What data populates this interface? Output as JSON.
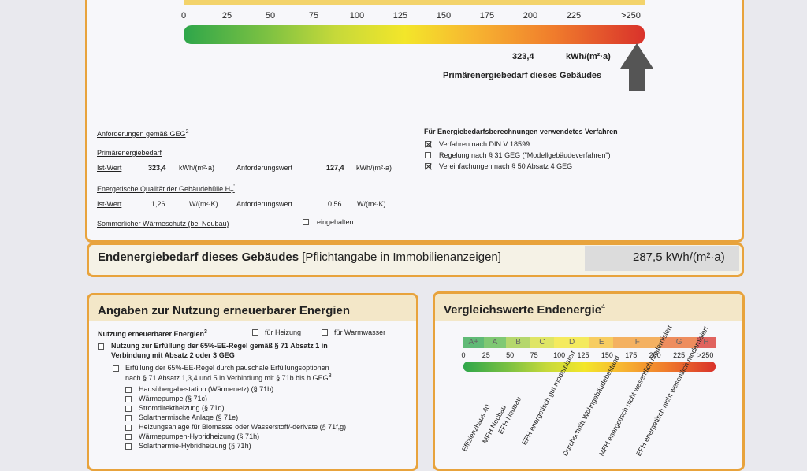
{
  "top_scale": {
    "ticks": [
      "0",
      "25",
      "50",
      "75",
      "100",
      "125",
      "150",
      "175",
      "200",
      "225",
      ">250"
    ],
    "value": "323,4",
    "unit": "kWh/(m²·a)",
    "arrow_label": "Primärenergiebedarf dieses Gebäudes"
  },
  "requirements": {
    "heading": "Anforderungen gemäß GEG",
    "heading_sup": "2",
    "primary_title": "Primärenergiebedarf",
    "ist_label": "Ist-Wert",
    "ist_value": "323,4",
    "ist_unit": "kWh/(m²·a)",
    "anf_label": "Anforderungswert",
    "anf_value": "127,4",
    "anf_unit": "kWh/(m²·a)",
    "envelope_title": "Energetische Qualität der Gebäudehülle H",
    "envelope_sub": "T",
    "envelope_sup": "'",
    "ist2_label": "Ist-Wert",
    "ist2_value": "1,26",
    "ist2_unit": "W/(m²·K)",
    "anf2_label": "Anforderungswert",
    "anf2_value": "0,56",
    "anf2_unit": "W/(m²·K)",
    "summer_label": "Sommerlicher Wärmeschutz (bei Neubau)",
    "summer_check_label": "eingehalten"
  },
  "procedure": {
    "heading": "Für Energiebedarfsberechnungen verwendetes Verfahren",
    "items": [
      {
        "label": "Verfahren nach DIN V 18599",
        "checked": true
      },
      {
        "label": "Regelung nach § 31 GEG (\"Modellgebäudeverfahren\")",
        "checked": false
      },
      {
        "label": "Vereinfachungen nach § 50 Absatz 4 GEG",
        "checked": true
      }
    ]
  },
  "final_energy": {
    "label": "Endenergiebedarf dieses Gebäudes",
    "note": "[Pflichtangabe in Immobilienanzeigen]",
    "value": "287,5 kWh/(m²·a)"
  },
  "renewables": {
    "title": "Angaben zur Nutzung erneuerbarer Energien",
    "use_label": "Nutzung erneuerbarer Energien",
    "use_sup": "3",
    "heating": "für Heizung",
    "hot_water": "für Warmwasser",
    "rule_line1": "Nutzung zur Erfüllung der 65%-EE-Regel gemäß § 71 Absatz 1 in",
    "rule_line2": "Verbindung mit Absatz 2 oder 3 GEG",
    "flat_line1": "Erfüllung der 65%-EE-Regel durch pauschale Erfüllungsoptionen",
    "flat_line2": "nach § 71 Absatz 1,3,4 und 5 in Verbindung mit § 71b bis h GEG",
    "flat_sup": "3",
    "options": [
      "Hausübergabestation (Wärmenetz) (§ 71b)",
      "Wärmepumpe (§ 71c)",
      "Stromdirektheizung (§ 71d)",
      "Solarthermische Anlage (§ 71e)",
      "Heizungsanlage für Biomasse oder Wasserstoff/-derivate (§ 71f,g)",
      "Wärmepumpen-Hybridheizung (§ 71h)",
      "Solarthermie-Hybridheizung (§ 71h)"
    ]
  },
  "comparison": {
    "title": "Vergleichswerte Endenergie",
    "title_sup": "4",
    "classes": [
      "A+",
      "A",
      "B",
      "C",
      "D",
      "E",
      "F",
      "G",
      "H"
    ],
    "class_colors": [
      "#2ea64a",
      "#58b947",
      "#9fcd3f",
      "#d8df34",
      "#f3e62a",
      "#f7c02f",
      "#f39a2e",
      "#ec6a2b",
      "#d9322b"
    ],
    "ticks": [
      "0",
      "25",
      "50",
      "75",
      "100",
      "125",
      "150",
      "175",
      "200",
      "225",
      ">250"
    ],
    "references": [
      "Effizienzhaus 40",
      "MFH Neubau",
      "EFH Neubau",
      "EFH energetisch gut modernisiert",
      "Durchschnitt Wohngebäudebestand",
      "MFH energetisch nicht wesentlich modernisiert",
      "EFH energetisch nicht wesentlich modernisiert"
    ]
  }
}
